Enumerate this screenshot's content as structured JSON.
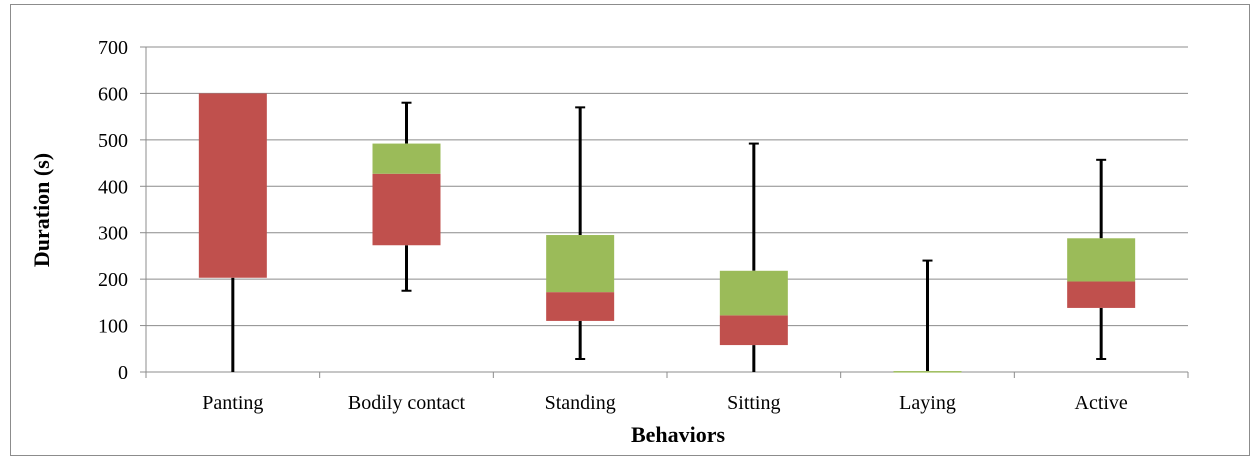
{
  "chart_data": {
    "type": "box",
    "title": "",
    "xlabel": "Behaviors",
    "ylabel": "Duration (s)",
    "ylim": [
      0,
      700
    ],
    "yticks": [
      0,
      100,
      200,
      300,
      400,
      500,
      600,
      700
    ],
    "grid": true,
    "legend": "none",
    "categories": [
      "Panting",
      "Bodily contact",
      "Standing",
      "Sitting",
      "Laying",
      "Active"
    ],
    "series": [
      {
        "colors": {
          "lower_box": "#c0504d",
          "upper_box": "#9bbb59",
          "whisker": "#000000"
        },
        "min": [
          0,
          175,
          28,
          0,
          0,
          28
        ],
        "q1": [
          203,
          273,
          110,
          58,
          0,
          138
        ],
        "median": [
          600,
          427,
          172,
          122,
          0,
          195
        ],
        "q3": [
          600,
          492,
          295,
          218,
          2,
          288
        ],
        "max": [
          600,
          580,
          570,
          492,
          240,
          457
        ]
      }
    ]
  }
}
